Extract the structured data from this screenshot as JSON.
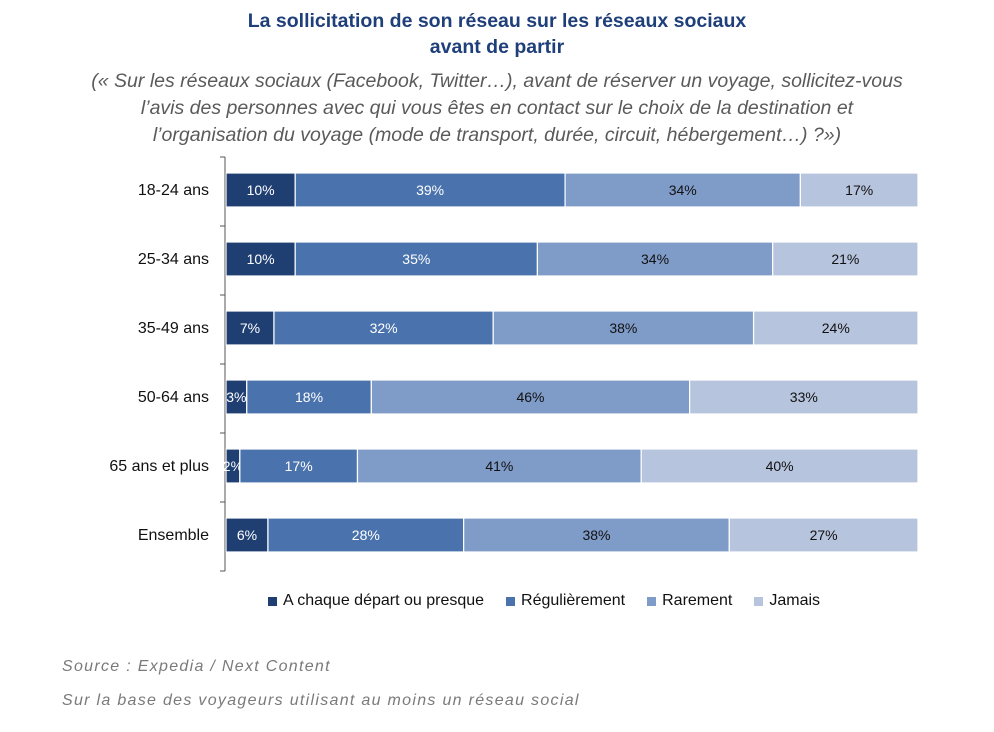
{
  "title_line1": "La sollicitation de son réseau sur les réseaux sociaux",
  "title_line2": "avant de partir",
  "subtitle_lines": [
    "(« Sur les réseaux sociaux (Facebook, Twitter…), avant de réserver un voyage, sollicitez-vous",
    "l’avis des personnes avec qui vous êtes en contact sur le choix de la destination et",
    "l’organisation du voyage (mode de transport, durée, circuit, hébergement…) ?»)"
  ],
  "source": "Source : Expedia / Next Content",
  "base_note": "Sur la base des voyageurs utilisant au moins un réseau social",
  "chart_data": {
    "type": "bar",
    "orientation": "horizontal-stacked-100",
    "categories": [
      "18-24 ans",
      "25-34 ans",
      "35-49 ans",
      "50-64 ans",
      "65 ans et plus",
      "Ensemble"
    ],
    "series": [
      {
        "name": "A chaque départ ou presque",
        "values": [
          10,
          10,
          7,
          3,
          2,
          6
        ],
        "color": "#1f3f73",
        "label_color": "#ffffff"
      },
      {
        "name": "Régulièrement",
        "values": [
          39,
          35,
          32,
          18,
          17,
          28
        ],
        "color": "#4a73ad",
        "label_color": "#ffffff"
      },
      {
        "name": "Rarement",
        "values": [
          34,
          34,
          38,
          46,
          41,
          38
        ],
        "color": "#7f9bc8",
        "label_color": "#111111"
      },
      {
        "name": "Jamais",
        "values": [
          17,
          21,
          24,
          33,
          40,
          27
        ],
        "color": "#b7c4de",
        "label_color": "#111111"
      }
    ],
    "value_suffix": "%",
    "legend_position": "bottom"
  }
}
